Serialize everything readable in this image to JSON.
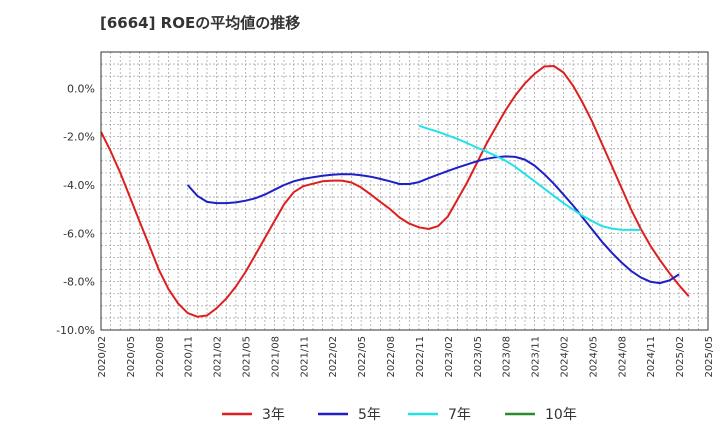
{
  "title": "[6664]  ROEの平均値の推移",
  "chart_data": {
    "type": "line",
    "title": "[6664]  ROEの平均値の推移",
    "xlabel": "",
    "ylabel": "",
    "ylim": [
      -10,
      1.5
    ],
    "grid": true,
    "legend_position": "bottom",
    "y_ticks": [
      "0.0%",
      "-2.0%",
      "-4.0%",
      "-6.0%",
      "-8.0%",
      "-10.0%"
    ],
    "y_tick_values": [
      0,
      -2,
      -4,
      -6,
      -8,
      -10
    ],
    "x_ticks": [
      "2020/02",
      "2020/05",
      "2020/08",
      "2020/11",
      "2021/02",
      "2021/05",
      "2021/08",
      "2021/11",
      "2022/02",
      "2022/05",
      "2022/08",
      "2022/11",
      "2023/02",
      "2023/05",
      "2023/08",
      "2023/11",
      "2024/02",
      "2024/05",
      "2024/08",
      "2024/11",
      "2025/02",
      "2025/05"
    ],
    "series": [
      {
        "name": "3年",
        "color": "#dd1f1f",
        "start": "2020/02",
        "values": [
          -1.8,
          -2.6,
          -3.5,
          -4.5,
          -5.5,
          -6.5,
          -7.5,
          -8.3,
          -8.9,
          -9.3,
          -9.45,
          -9.4,
          -9.1,
          -8.7,
          -8.2,
          -7.6,
          -6.9,
          -6.2,
          -5.5,
          -4.8,
          -4.3,
          -4.05,
          -3.95,
          -3.85,
          -3.82,
          -3.82,
          -3.9,
          -4.1,
          -4.4,
          -4.7,
          -5.0,
          -5.35,
          -5.6,
          -5.75,
          -5.82,
          -5.7,
          -5.3,
          -4.6,
          -3.9,
          -3.1,
          -2.3,
          -1.6,
          -0.9,
          -0.3,
          0.2,
          0.6,
          0.9,
          0.92,
          0.65,
          0.1,
          -0.6,
          -1.4,
          -2.3,
          -3.2,
          -4.1,
          -5.0,
          -5.8,
          -6.5,
          -7.1,
          -7.65,
          -8.15,
          -8.6
        ]
      },
      {
        "name": "5年",
        "color": "#1f1fc8",
        "start": "2020/11",
        "values": [
          -4.0,
          -4.45,
          -4.7,
          -4.75,
          -4.75,
          -4.72,
          -4.65,
          -4.55,
          -4.4,
          -4.2,
          -4.0,
          -3.85,
          -3.75,
          -3.68,
          -3.62,
          -3.58,
          -3.55,
          -3.56,
          -3.6,
          -3.66,
          -3.75,
          -3.85,
          -3.96,
          -3.96,
          -3.88,
          -3.72,
          -3.57,
          -3.42,
          -3.28,
          -3.15,
          -3.02,
          -2.92,
          -2.85,
          -2.82,
          -2.84,
          -2.95,
          -3.2,
          -3.55,
          -3.95,
          -4.4,
          -4.85,
          -5.35,
          -5.85,
          -6.35,
          -6.8,
          -7.2,
          -7.55,
          -7.82,
          -8.0,
          -8.06,
          -7.95,
          -7.7
        ]
      },
      {
        "name": "7年",
        "color": "#22e1e9",
        "start": "2022/11",
        "values": [
          -1.55,
          -1.68,
          -1.8,
          -1.95,
          -2.1,
          -2.27,
          -2.45,
          -2.62,
          -2.8,
          -3.0,
          -3.25,
          -3.55,
          -3.85,
          -4.15,
          -4.45,
          -4.75,
          -5.02,
          -5.28,
          -5.5,
          -5.7,
          -5.8,
          -5.85,
          -5.86,
          -5.86
        ]
      },
      {
        "name": "10年",
        "color": "#2a8c2a",
        "start": "2020/02",
        "values": []
      }
    ]
  }
}
